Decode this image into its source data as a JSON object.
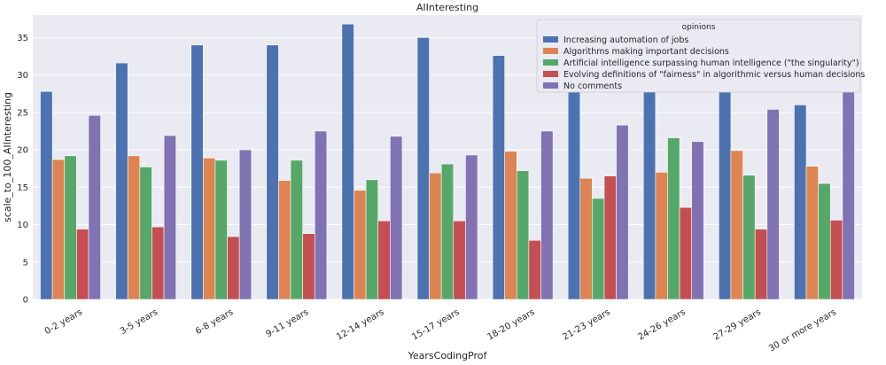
{
  "chart_data": {
    "type": "bar",
    "title": "AIInteresting",
    "xlabel": "YearsCodingProf",
    "ylabel": "scale_to_100_AIInteresting",
    "ylim": [
      0,
      38
    ],
    "yticks": [
      0,
      5,
      10,
      15,
      20,
      25,
      30,
      35
    ],
    "grid": true,
    "legend_title": "opinions",
    "legend_position": "top-right",
    "categories": [
      "0-2 years",
      "3-5 years",
      "6-8 years",
      "9-11 years",
      "12-14 years",
      "15-17 years",
      "18-20 years",
      "21-23 years",
      "24-26 years",
      "27-29 years",
      "30 or more years"
    ],
    "series": [
      {
        "name": "Increasing automation of jobs",
        "color": "#4c72b0",
        "values": [
          27.8,
          31.6,
          34.0,
          34.0,
          36.8,
          35.0,
          32.6,
          30.3,
          27.8,
          28.5,
          26.0
        ]
      },
      {
        "name": "Algorithms making important decisions",
        "color": "#dd8452",
        "values": [
          18.7,
          19.2,
          18.9,
          15.9,
          14.6,
          16.9,
          19.8,
          16.2,
          17.0,
          19.9,
          17.8
        ]
      },
      {
        "name": "Artificial intelligence surpassing human intelligence (\"the singularity\")",
        "color": "#55a868",
        "values": [
          19.2,
          17.7,
          18.6,
          18.6,
          16.0,
          18.1,
          17.2,
          13.5,
          21.6,
          16.6,
          15.5
        ]
      },
      {
        "name": "Evolving definitions of \"fairness\" in algorithmic versus human decisions",
        "color": "#c44e52",
        "values": [
          9.4,
          9.7,
          8.4,
          8.8,
          10.5,
          10.5,
          7.9,
          16.5,
          12.3,
          9.4,
          10.6
        ]
      },
      {
        "name": "No comments",
        "color": "#8172b3",
        "values": [
          24.6,
          21.9,
          20.0,
          22.5,
          21.8,
          19.3,
          22.5,
          23.3,
          21.1,
          25.4,
          30.0
        ]
      }
    ]
  }
}
